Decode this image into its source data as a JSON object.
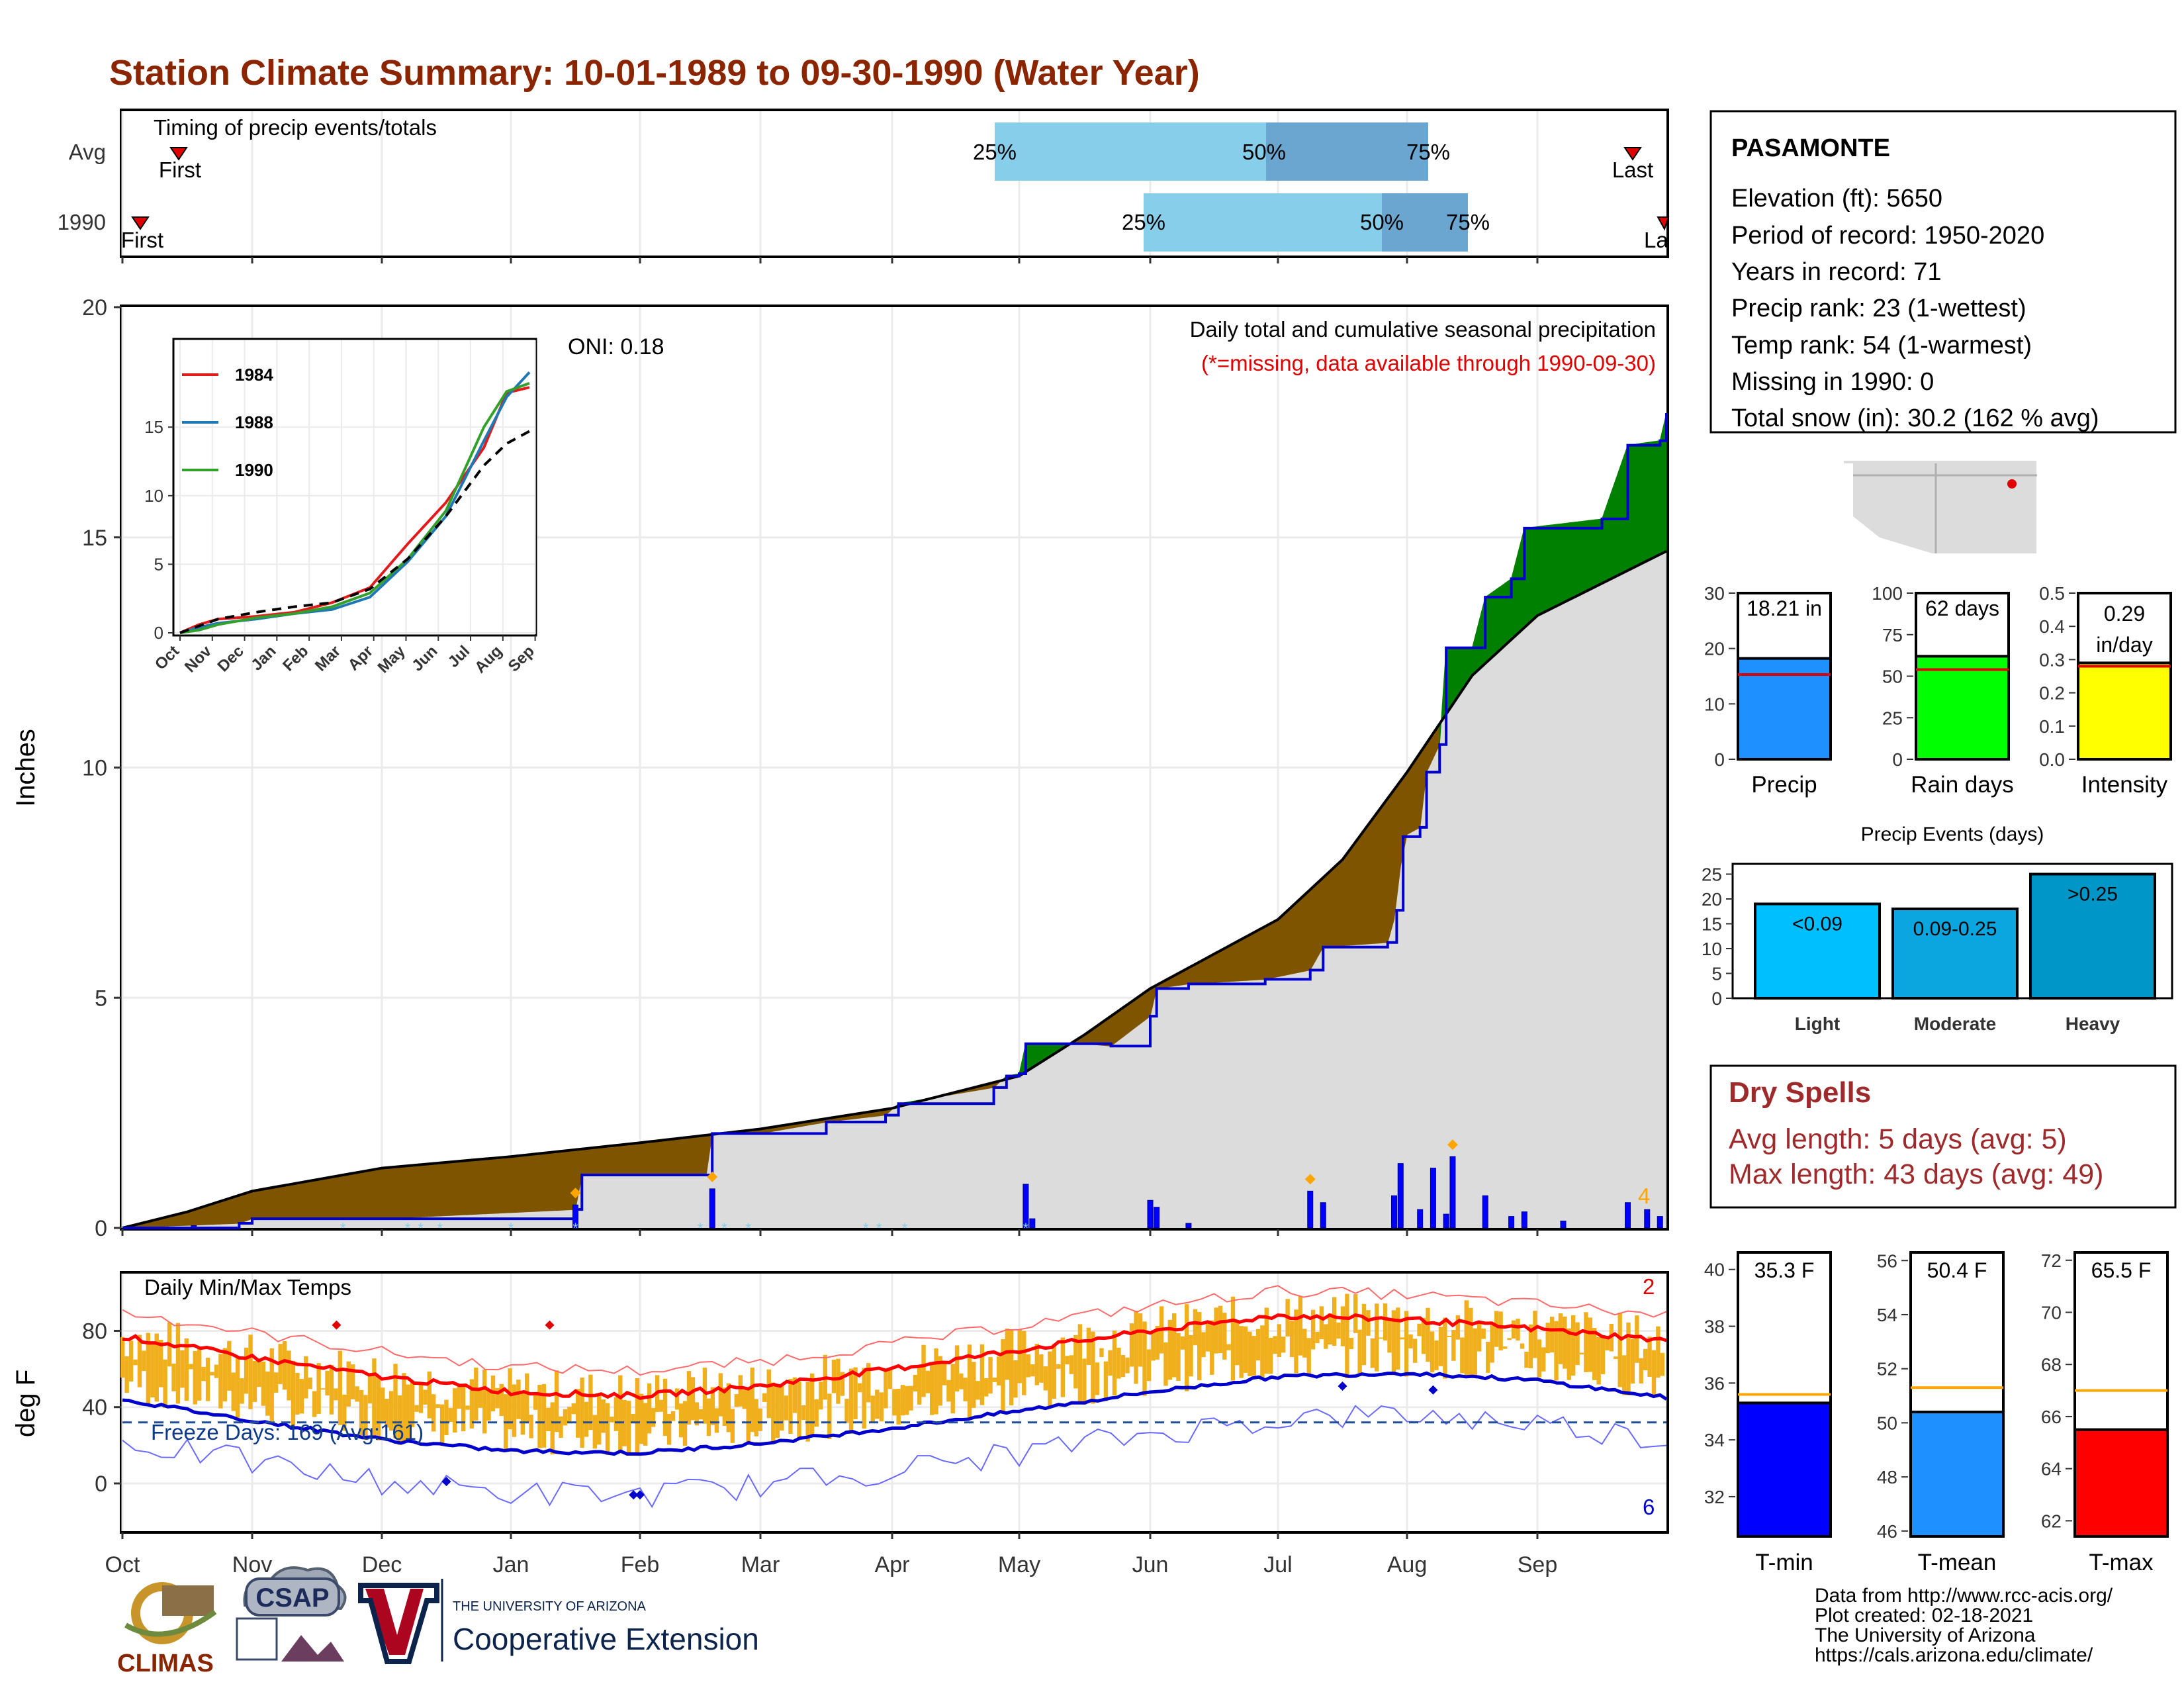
{
  "title": "Station Climate Summary: 10-01-1989 to 09-30-1990 (Water Year)",
  "colors": {
    "title": "#8B2500",
    "deficit": "#7F5400",
    "surplus": "#008000",
    "avg_fill": "#DCDCDC",
    "precip_line": "#0000CD",
    "tmax_bar": "#F0B01E",
    "snow_tick": "#87CEEB",
    "dryspell": "#9E2A2B"
  },
  "timing": {
    "title": "Timing of precip events/totals",
    "rows": [
      {
        "label": "Avg",
        "first_label": "First",
        "last_label": "Last",
        "p25_label": "25%",
        "p50_label": "50%",
        "p75_label": "75%"
      },
      {
        "label": "1990",
        "first_label": "First",
        "last_label": "La",
        "p25_label": "25%",
        "p50_label": "50%",
        "p75_label": "75%"
      }
    ]
  },
  "precip_panel": {
    "ylabel": "Inches",
    "yticks": [
      "0",
      "5",
      "10",
      "15",
      "20"
    ],
    "oni_label": "ONI: 0.18",
    "caption": "Daily total and cumulative seasonal precipitation",
    "missing_note": "(*=missing, data available through 1990-09-30)",
    "count_label": "4"
  },
  "temp_panel": {
    "title": "Daily Min/Max Temps",
    "ylabel": "deg F",
    "yticks": [
      "0",
      "40",
      "80"
    ],
    "freeze_label": "Freeze Days: 169 (Avg:161)",
    "record_high_count": "2",
    "record_low_count": "6"
  },
  "months": [
    "Oct",
    "Nov",
    "Dec",
    "Jan",
    "Feb",
    "Mar",
    "Apr",
    "May",
    "Jun",
    "Jul",
    "Aug",
    "Sep"
  ],
  "inset": {
    "months": [
      "Oct",
      "Nov",
      "Dec",
      "Jan",
      "Feb",
      "Mar",
      "Apr",
      "May",
      "Jun",
      "Jul",
      "Aug",
      "Sep"
    ],
    "yticks": [
      "0",
      "5",
      "10",
      "15"
    ],
    "legend": [
      {
        "year": "1984",
        "color": "#E31A1C"
      },
      {
        "year": "1988",
        "color": "#1F78B4"
      },
      {
        "year": "1990",
        "color": "#33A02C"
      }
    ]
  },
  "station": {
    "name": "PASAMONTE",
    "lines": [
      "Elevation (ft): 5650",
      "Period of record: 1950-2020",
      "Years in record: 71",
      "Precip rank: 23 (1-wettest)",
      "Temp rank: 54 (1-warmest)",
      "Missing in 1990: 0",
      "Total snow (in): 30.2 (162 % avg)"
    ]
  },
  "summary_bars": [
    {
      "label": "Precip",
      "value_label": "18.21 in",
      "value": 18.21,
      "avg": 15.3,
      "ymax": 30,
      "yticks": [
        "0",
        "10",
        "20",
        "30"
      ],
      "color": "#1E90FF"
    },
    {
      "label": "Rain days",
      "value_label": "62 days",
      "value": 62,
      "avg": 54,
      "ymax": 100,
      "yticks": [
        "0",
        "25",
        "50",
        "75",
        "100"
      ],
      "color": "#00FF00"
    },
    {
      "label": "Intensity",
      "value_label": "0.29 in/day",
      "value_line1": "0.29",
      "value_line2": "in/day",
      "value": 0.29,
      "avg": 0.28,
      "ymax": 0.5,
      "yticks": [
        "0.0",
        "0.1",
        "0.2",
        "0.3",
        "0.4",
        "0.5"
      ],
      "color": "#FFFF00"
    }
  ],
  "events": {
    "title": "Precip Events (days)",
    "yticks": [
      "0",
      "5",
      "10",
      "15",
      "20",
      "25"
    ],
    "bars": [
      {
        "label": "Light",
        "inner": "<0.09",
        "value": 19,
        "color": "#00BFFF"
      },
      {
        "label": "Moderate",
        "inner": "0.09-0.25",
        "value": 18,
        "color": "#0BA6E0"
      },
      {
        "label": "Heavy",
        "inner": ">0.25",
        "value": 25,
        "color": "#0096C7"
      }
    ]
  },
  "dry_spells": {
    "title": "Dry Spells",
    "avg": "Avg length: 5 days (avg: 5)",
    "max": "Max length: 43 days (avg: 49)"
  },
  "temp_bars": [
    {
      "label": "T-min",
      "value_label": "35.3 F",
      "value": 35.3,
      "avg": 35.6,
      "ymin": 30.6,
      "ymax": 40.6,
      "yticks": [
        "32",
        "34",
        "36",
        "38",
        "40"
      ],
      "color": "#0000FF"
    },
    {
      "label": "T-mean",
      "value_label": "50.4 F",
      "value": 50.4,
      "avg": 51.3,
      "ymin": 45.8,
      "ymax": 56.3,
      "yticks": [
        "46",
        "48",
        "50",
        "52",
        "54",
        "56"
      ],
      "color": "#1E90FF"
    },
    {
      "label": "T-max",
      "value_label": "65.5 F",
      "value": 65.5,
      "avg": 67.0,
      "ymin": 61.4,
      "ymax": 72.3,
      "yticks": [
        "62",
        "64",
        "66",
        "68",
        "70",
        "72"
      ],
      "color": "#FF0000"
    }
  ],
  "footer": {
    "lines": [
      "Data from http://www.rcc-acis.org/",
      "Plot created: 02-18-2021",
      "The University of Arizona",
      "https://cals.arizona.edu/climate/"
    ],
    "logo_climas": "CLIMAS",
    "logo_csap": "CSAP",
    "ua_small": "THE UNIVERSITY OF ARIZONA",
    "ua_big": "Cooperative Extension"
  },
  "chart_data": {
    "type": "area",
    "title": "Daily total and cumulative seasonal precipitation",
    "ylabel": "Inches",
    "ylim": [
      0,
      20
    ],
    "x_unit": "month (water year Oct 1989 - Sep 1990)",
    "cumulative_1990": [
      [
        0,
        0
      ],
      [
        0.9,
        0.1
      ],
      [
        1.0,
        0.2
      ],
      [
        2.0,
        0.2
      ],
      [
        3.5,
        0.4
      ],
      [
        3.55,
        1.15
      ],
      [
        4.55,
        1.15
      ],
      [
        4.6,
        2.05
      ],
      [
        5.0,
        2.05
      ],
      [
        5.5,
        2.3
      ],
      [
        5.95,
        2.45
      ],
      [
        6.05,
        2.7
      ],
      [
        6.8,
        3.05
      ],
      [
        6.9,
        3.3
      ],
      [
        7.0,
        3.35
      ],
      [
        7.05,
        4.0
      ],
      [
        7.5,
        4.0
      ],
      [
        7.7,
        3.95
      ],
      [
        8.0,
        4.6
      ],
      [
        8.05,
        5.2
      ],
      [
        8.3,
        5.3
      ],
      [
        8.9,
        5.4
      ],
      [
        9.25,
        5.6
      ],
      [
        9.35,
        6.1
      ],
      [
        9.85,
        6.2
      ],
      [
        9.92,
        6.9
      ],
      [
        9.97,
        8.5
      ],
      [
        10.1,
        8.7
      ],
      [
        10.15,
        9.9
      ],
      [
        10.25,
        10.5
      ],
      [
        10.3,
        12.6
      ],
      [
        10.5,
        12.6
      ],
      [
        10.6,
        13.7
      ],
      [
        10.8,
        14.1
      ],
      [
        10.9,
        15.2
      ],
      [
        11.5,
        15.4
      ],
      [
        11.7,
        17.0
      ],
      [
        11.95,
        17.1
      ],
      [
        12.0,
        17.7
      ]
    ],
    "cumulative_avg": [
      [
        0,
        0
      ],
      [
        0.5,
        0.35
      ],
      [
        1,
        0.8
      ],
      [
        2,
        1.3
      ],
      [
        3,
        1.55
      ],
      [
        4,
        1.85
      ],
      [
        5,
        2.15
      ],
      [
        6,
        2.6
      ],
      [
        7,
        3.3
      ],
      [
        7.5,
        4.2
      ],
      [
        8,
        5.2
      ],
      [
        9,
        6.7
      ],
      [
        9.5,
        8.0
      ],
      [
        10,
        9.9
      ],
      [
        10.5,
        12.0
      ],
      [
        11,
        13.3
      ],
      [
        11.5,
        14.0
      ],
      [
        12,
        14.7
      ]
    ],
    "daily_events": [
      [
        0.55,
        0.05
      ],
      [
        3.5,
        0.5
      ],
      [
        4.6,
        0.85
      ],
      [
        7.05,
        0.95
      ],
      [
        7.1,
        0.2
      ],
      [
        8.0,
        0.6
      ],
      [
        8.05,
        0.45
      ],
      [
        8.3,
        0.1
      ],
      [
        9.25,
        0.8
      ],
      [
        9.35,
        0.55
      ],
      [
        9.9,
        0.7
      ],
      [
        9.95,
        1.4
      ],
      [
        10.1,
        0.4
      ],
      [
        10.2,
        1.3
      ],
      [
        10.3,
        0.3
      ],
      [
        10.35,
        1.55
      ],
      [
        10.6,
        0.7
      ],
      [
        10.8,
        0.25
      ],
      [
        10.9,
        0.35
      ],
      [
        11.2,
        0.15
      ],
      [
        11.7,
        0.55
      ],
      [
        11.85,
        0.4
      ],
      [
        11.95,
        0.25
      ]
    ],
    "inset_series": [
      {
        "name": "1984",
        "points": [
          [
            0,
            0
          ],
          [
            0.5,
            0.6
          ],
          [
            1,
            1
          ],
          [
            2,
            1.2
          ],
          [
            3,
            1.5
          ],
          [
            4,
            2.2
          ],
          [
            5,
            3.3
          ],
          [
            6,
            6.5
          ],
          [
            7,
            9.5
          ],
          [
            8,
            13.5
          ],
          [
            8.6,
            17.5
          ],
          [
            9.2,
            17.9
          ]
        ]
      },
      {
        "name": "1988",
        "points": [
          [
            0,
            0
          ],
          [
            0.5,
            0.4
          ],
          [
            1,
            0.7
          ],
          [
            2,
            1.0
          ],
          [
            3,
            1.4
          ],
          [
            4,
            1.7
          ],
          [
            5,
            2.6
          ],
          [
            6,
            5.2
          ],
          [
            7,
            8.5
          ],
          [
            8,
            14.0
          ],
          [
            8.6,
            17.2
          ],
          [
            9.2,
            19.0
          ]
        ]
      },
      {
        "name": "1990",
        "points": [
          [
            0,
            0
          ],
          [
            0.5,
            0.2
          ],
          [
            1,
            0.6
          ],
          [
            2,
            1.1
          ],
          [
            3,
            1.4
          ],
          [
            4,
            1.9
          ],
          [
            5,
            2.9
          ],
          [
            6,
            5.4
          ],
          [
            7,
            8.9
          ],
          [
            8,
            15.0
          ],
          [
            8.6,
            17.6
          ],
          [
            9.2,
            18.2
          ]
        ]
      },
      {
        "name": "avg",
        "points": [
          [
            0,
            0
          ],
          [
            1,
            1
          ],
          [
            2,
            1.5
          ],
          [
            3,
            1.9
          ],
          [
            4,
            2.2
          ],
          [
            5,
            3.2
          ],
          [
            6,
            5.4
          ],
          [
            7,
            8.5
          ],
          [
            8,
            12.2
          ],
          [
            8.6,
            13.8
          ],
          [
            9.2,
            14.7
          ]
        ]
      }
    ],
    "temp": {
      "tmax_avg": [
        [
          0,
          77
        ],
        [
          1,
          66
        ],
        [
          2,
          56
        ],
        [
          3,
          48
        ],
        [
          4,
          46
        ],
        [
          5,
          51
        ],
        [
          6,
          60
        ],
        [
          7,
          70
        ],
        [
          8,
          80
        ],
        [
          9,
          88
        ],
        [
          10,
          86
        ],
        [
          11,
          81
        ],
        [
          12,
          75
        ]
      ],
      "tmin_avg": [
        [
          0,
          44
        ],
        [
          1,
          33
        ],
        [
          2,
          23
        ],
        [
          3,
          17
        ],
        [
          4,
          16
        ],
        [
          5,
          21
        ],
        [
          6,
          29
        ],
        [
          7,
          38
        ],
        [
          8,
          48
        ],
        [
          9,
          56
        ],
        [
          10,
          58
        ],
        [
          11,
          54
        ],
        [
          12,
          45
        ]
      ],
      "freeze_line": 32,
      "ylim": [
        -25,
        110
      ]
    }
  }
}
